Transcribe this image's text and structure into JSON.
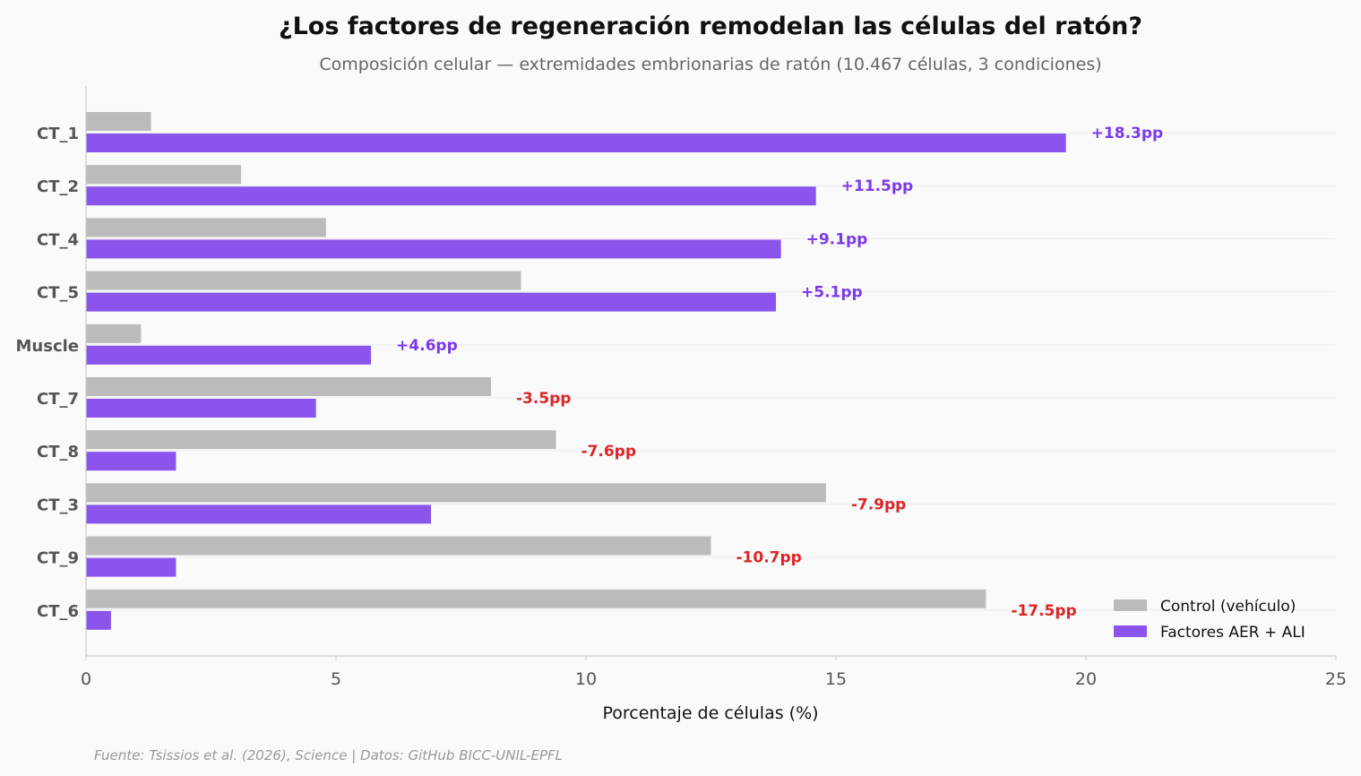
{
  "chart_data": {
    "type": "bar",
    "orientation": "horizontal",
    "title": "¿Los factores de regeneración remodelan las células del ratón?",
    "subtitle": "Composición celular — extremidades embrionarias de ratón (10.467 células, 3 condiciones)",
    "xlabel": "Porcentaje de células (%)",
    "ylabel": "",
    "xlim": [
      0,
      25
    ],
    "xticks": [
      "0",
      "5",
      "10",
      "15",
      "20",
      "25"
    ],
    "grid": "horizontal",
    "legend_position": "bottom-right",
    "categories": [
      "CT_1",
      "CT_2",
      "CT_4",
      "CT_5",
      "Muscle",
      "CT_7",
      "CT_8",
      "CT_3",
      "CT_9",
      "CT_6"
    ],
    "series": [
      {
        "name": "Control (vehículo)",
        "color": "#bbbbbb",
        "values": [
          1.3,
          3.1,
          4.8,
          8.7,
          1.1,
          8.1,
          9.4,
          14.8,
          12.5,
          18.0
        ]
      },
      {
        "name": "Factores AER + ALI",
        "color": "#8b55ed",
        "values": [
          19.6,
          14.6,
          13.9,
          13.8,
          5.7,
          4.6,
          1.8,
          6.9,
          1.8,
          0.5
        ]
      }
    ],
    "annotations": [
      "+18.3pp",
      "+11.5pp",
      "+9.1pp",
      "+5.1pp",
      "+4.6pp",
      "-3.5pp",
      "-7.6pp",
      "-7.9pp",
      "-10.7pp",
      "-17.5pp"
    ],
    "annotation_colors": {
      "positive": "#7c3aed",
      "negative": "#dc2626"
    },
    "source": "Fuente: Tsissios et al. (2026), Science | Datos: GitHub BICC-UNIL-EPFL"
  }
}
